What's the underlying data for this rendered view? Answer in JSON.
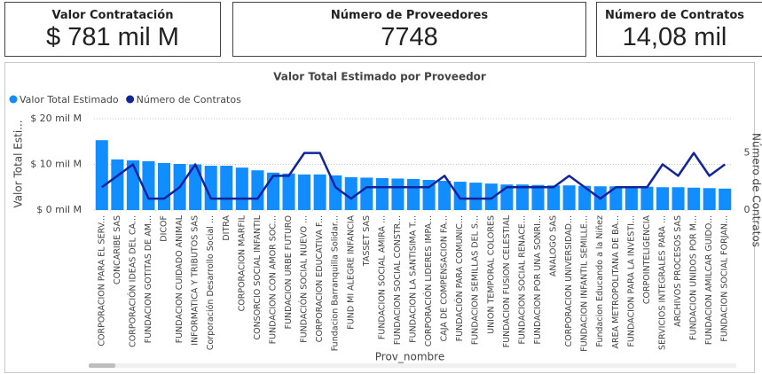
{
  "cards": [
    {
      "title": "Valor Contratación",
      "value": "$ 781 mil M"
    },
    {
      "title": "Número de Proveedores",
      "value": "7748"
    },
    {
      "title": "Número de Contratos",
      "value": "14,08 mil"
    }
  ],
  "chart_data": {
    "type": "combo",
    "title": "Valor Total Estimado por Proveedor",
    "x_label": "Prov_nombre",
    "y_label": "Valor Total Esti...",
    "y2_label": "Número de Contratos",
    "legend": "top-left",
    "grid": true,
    "categories": [
      "CORPORACION PARA EL SERV...",
      "CONCARIBE SAS",
      "CORPORACIÓN IDEAS DEL CA...",
      "FUNDACION GOTITAS DE AM...",
      "DICOF",
      "FUNDACION CUIDADO ANIMAL",
      "INFORMATICA Y TRIBUTOS SAS",
      "Corporación Desarrollo Social ...",
      "DITRA",
      "CORPORACION MARFIL",
      "CONSORCIO SOCIAL INFANTIL",
      "FUNDACION CON AMOR SOC...",
      "FUNDACION URBE FUTURO",
      "FUNDACIÓN SOCIAL NUEVO ...",
      "CORPORACION EDUCATIVA F...",
      "Fundacion Barranquilla Solidar...",
      "FUND MI ALEGRE INFANCIA",
      "TASSET SAS",
      "FUNDACION SOCIAL AMIRA ...",
      "FUNDACION SOCIAL CONSTR...",
      "FUNDACION LA SANTISIMA T...",
      "CORPORACIÓN LIDERES IMPA...",
      "CAJA DE COMPENSACION FA...",
      "FUNDACIÓN PARA COMUNIC...",
      "FUNDACION SEMILLAS DEL S...",
      "UNION TEMPORAL COLORES",
      "FUNDACION FUSION CELESTIAL",
      "FUNDACION SOCIAL RENACE...",
      "FUNDACION POR UNA SONRI...",
      "ANALOGO SAS",
      "CORPORACION UNIVERSIDAD...",
      "FUNDACION INFANTIL SEMILLE...",
      "Fundacion Educando a la Niñez",
      "AREA METROPOLITANA DE BA...",
      "FUNDACION PARA LA INVESTI...",
      "CORPOINTELIGENCIA",
      "SERVICIOS INTEGRALES PARA ...",
      "ARCHIVOS PROCESOS SAS",
      "FUNDACION UNIDOS POR M...",
      "FUNDACION AMILCAR GUIDO...",
      "FUNDACION SOCIAL FORJAN..."
    ],
    "series": [
      {
        "name": "Valor Total Estimado",
        "type": "bar",
        "color": "#118dff",
        "values": [
          15.3,
          11.1,
          10.9,
          10.7,
          10.3,
          10.1,
          10.0,
          9.7,
          9.7,
          9.3,
          8.7,
          8.2,
          8.0,
          7.8,
          7.8,
          7.6,
          7.2,
          7.1,
          7.0,
          6.9,
          6.8,
          6.6,
          6.4,
          6.2,
          6.0,
          5.8,
          5.6,
          5.6,
          5.5,
          5.4,
          5.4,
          5.3,
          5.2,
          5.2,
          5.2,
          5.1,
          5.0,
          5.0,
          4.9,
          4.8,
          4.7
        ]
      },
      {
        "name": "Número de Contratos",
        "type": "line",
        "axis": "y2",
        "color": "#12239e",
        "values": [
          2,
          3,
          4,
          1,
          1,
          2,
          4,
          1,
          1,
          1,
          1,
          3,
          3,
          5,
          5,
          2,
          1,
          2,
          2,
          2,
          2,
          2,
          3,
          1,
          1,
          1,
          2,
          2,
          2,
          2,
          3,
          2,
          1,
          2,
          2,
          2,
          4,
          3,
          5,
          3,
          4
        ]
      }
    ],
    "ylim": [
      0,
      20
    ],
    "yticks": [
      {
        "value": 0,
        "label": "$ 0 mil M"
      },
      {
        "value": 10,
        "label": "$ 10 mil M"
      },
      {
        "value": 20,
        "label": "$ 20 mil M"
      }
    ],
    "y2lim": [
      0,
      8
    ],
    "y2ticks": [
      0,
      5
    ]
  }
}
